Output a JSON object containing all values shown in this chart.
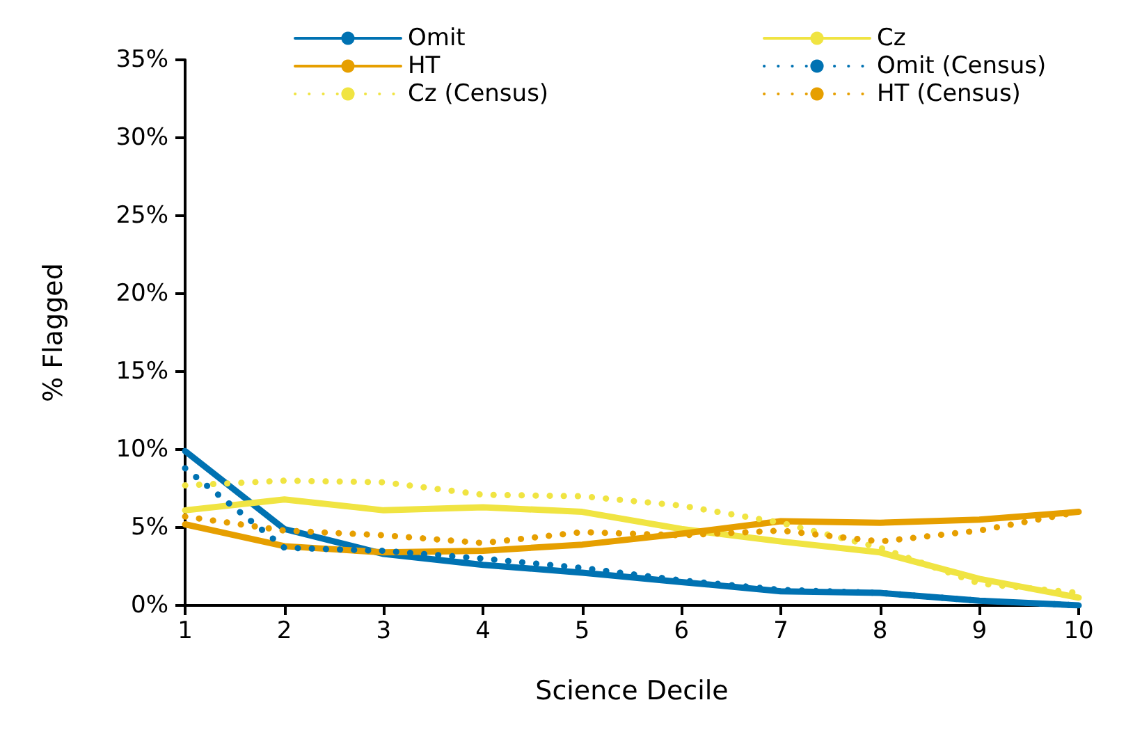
{
  "chart_data": {
    "type": "line",
    "xlabel": "Science Decile",
    "ylabel": "% Flagged",
    "x": [
      1,
      2,
      3,
      4,
      5,
      6,
      7,
      8,
      9,
      10
    ],
    "xlim": [
      1,
      10
    ],
    "xticks": [
      1,
      2,
      3,
      4,
      5,
      6,
      7,
      8,
      9,
      10
    ],
    "ylim": [
      0,
      35
    ],
    "yticks": [
      {
        "value": 0,
        "label": "0%"
      },
      {
        "value": 5,
        "label": "5%"
      },
      {
        "value": 10,
        "label": "10%"
      },
      {
        "value": 15,
        "label": "15%"
      },
      {
        "value": 20,
        "label": "20%"
      },
      {
        "value": 25,
        "label": "25%"
      },
      {
        "value": 30,
        "label": "30%"
      },
      {
        "value": 35,
        "label": "35%"
      }
    ],
    "grid": false,
    "legend": "top",
    "marker": "none",
    "series": [
      {
        "name": "Omit",
        "color": "#0072b2",
        "line_style": "solid",
        "values": [
          9.9,
          4.9,
          3.3,
          2.6,
          2.1,
          1.5,
          0.9,
          0.8,
          0.3,
          0.0
        ]
      },
      {
        "name": "Cz",
        "color": "#f0e442",
        "line_style": "solid",
        "values": [
          6.1,
          6.8,
          6.1,
          6.3,
          6.0,
          4.9,
          4.1,
          3.4,
          1.7,
          0.5
        ]
      },
      {
        "name": "HT",
        "color": "#e69f00",
        "line_style": "solid",
        "values": [
          5.2,
          3.8,
          3.4,
          3.5,
          3.9,
          4.6,
          5.4,
          5.3,
          5.5,
          6.0
        ]
      },
      {
        "name": "Omit (Census)",
        "color": "#0072b2",
        "line_style": "dotted",
        "values": [
          8.8,
          3.7,
          3.5,
          3.0,
          2.4,
          1.6,
          1.0,
          0.8,
          0.3,
          0.0
        ]
      },
      {
        "name": "Cz (Census)",
        "color": "#f0e442",
        "line_style": "dotted",
        "values": [
          7.7,
          8.0,
          7.9,
          7.1,
          7.0,
          6.4,
          5.3,
          3.7,
          1.4,
          0.8
        ]
      },
      {
        "name": "HT (Census)",
        "color": "#e69f00",
        "line_style": "dotted",
        "values": [
          5.7,
          4.8,
          4.5,
          4.0,
          4.7,
          4.5,
          4.8,
          4.1,
          4.8,
          6.0
        ]
      }
    ]
  }
}
